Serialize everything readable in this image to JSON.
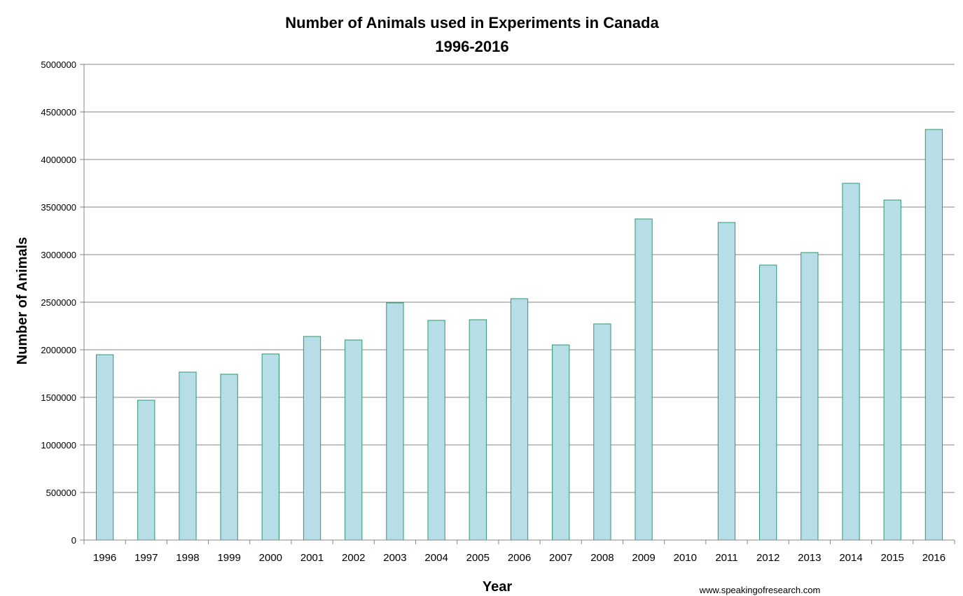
{
  "chart_data": {
    "type": "bar",
    "title": "Number of Animals used in Experiments in Canada",
    "subtitle": "1996-2016",
    "xlabel": "Year",
    "ylabel": "Number of Animals",
    "ylim": [
      0,
      5000000
    ],
    "yticks": [
      0,
      500000,
      1000000,
      1500000,
      2000000,
      2500000,
      3000000,
      3500000,
      4000000,
      4500000,
      5000000
    ],
    "grid": true,
    "legend": "none",
    "categories": [
      "1996",
      "1997",
      "1998",
      "1999",
      "2000",
      "2001",
      "2002",
      "2003",
      "2004",
      "2005",
      "2006",
      "2007",
      "2008",
      "2009",
      "2010",
      "2011",
      "2012",
      "2013",
      "2014",
      "2015",
      "2016"
    ],
    "values": [
      1948000,
      1470000,
      1765000,
      1743000,
      1956000,
      2140000,
      2103000,
      2493000,
      2309000,
      2316000,
      2537000,
      2051000,
      2272000,
      3375000,
      null,
      3338000,
      2890000,
      3022000,
      3750000,
      3574000,
      4316000
    ],
    "colors": {
      "bar_fill": "#b7dde6",
      "bar_stroke": "#2a9a72",
      "grid": "#868686",
      "axis": "#868686"
    },
    "credit": "www.speakingofresearch.com"
  }
}
